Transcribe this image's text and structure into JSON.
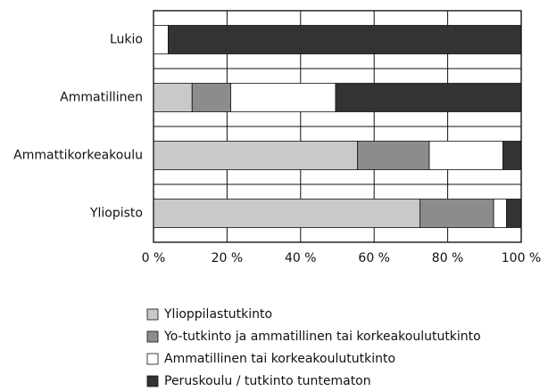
{
  "chart_data": {
    "type": "bar",
    "orientation": "horizontal",
    "stacked": true,
    "categories": [
      "Lukio",
      "Ammatillinen",
      "Ammattikorkeakoulu",
      "Yliopisto"
    ],
    "series": [
      {
        "name": "Ylioppilastutkinto",
        "color": "#c9c9c9",
        "values": [
          0,
          10.5,
          55.5,
          72.5
        ]
      },
      {
        "name": "Yo-tutkinto ja ammatillinen tai korkeakoulututkinto",
        "color": "#8c8c8c",
        "values": [
          0,
          10.5,
          19.5,
          20
        ]
      },
      {
        "name": "Ammatillinen tai korkeakoulututkinto",
        "color": "#ffffff",
        "values": [
          4,
          28.5,
          20,
          3.5
        ]
      },
      {
        "name": "Peruskoulu / tutkinto tuntematon",
        "color": "#333333",
        "values": [
          96,
          50.5,
          5,
          4
        ]
      }
    ],
    "xlim": [
      0,
      100
    ],
    "xticks": [
      {
        "value": 0,
        "label": "0 %"
      },
      {
        "value": 20,
        "label": "20 %"
      },
      {
        "value": 40,
        "label": "40 %"
      },
      {
        "value": 60,
        "label": "60 %"
      },
      {
        "value": 80,
        "label": "80 %"
      },
      {
        "value": 100,
        "label": "100 %"
      }
    ],
    "grid": true,
    "legend": "bottom"
  }
}
